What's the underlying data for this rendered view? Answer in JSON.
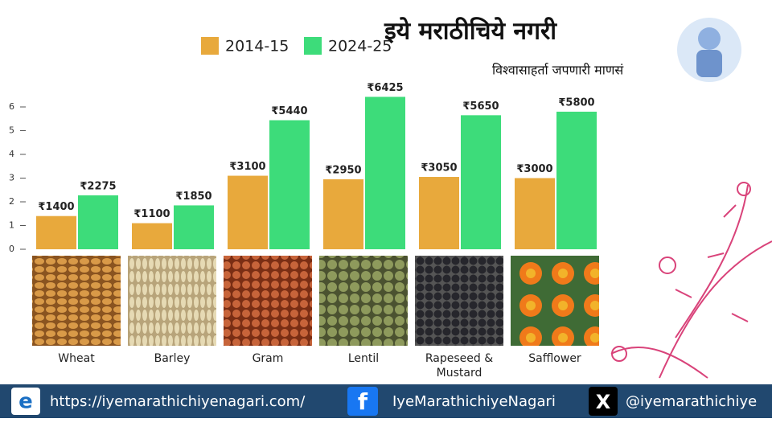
{
  "header": {
    "title": "इये मराठीचिये नगरी",
    "subtitle": "विश्वासाहर्ता जपणारी माणसं"
  },
  "chart_data": {
    "type": "bar",
    "categories": [
      "Wheat",
      "Barley",
      "Gram",
      "Lentil",
      "Rapeseed & Mustard",
      "Safflower"
    ],
    "series": [
      {
        "name": "2014-15",
        "color": "#e8a93c",
        "values": [
          1.4,
          1.1,
          3.1,
          2.95,
          3.05,
          3.0
        ],
        "value_labels": [
          "₹1400",
          "₹1100",
          "₹3100",
          "₹2950",
          "₹3050",
          "₹3000"
        ]
      },
      {
        "name": "2024-25",
        "color": "#3ddc7a",
        "values": [
          2.275,
          1.85,
          5.44,
          6.425,
          5.65,
          5.8
        ],
        "value_labels": [
          "₹2275",
          "₹1850",
          "₹5440",
          "₹6425",
          "₹5650",
          "₹5800"
        ]
      }
    ],
    "ylim": [
      0,
      7
    ],
    "yticks": [
      0,
      1,
      2,
      3,
      4,
      5,
      6
    ],
    "grid": false,
    "legend": "top"
  },
  "footer": {
    "website": "https://iyemarathichiyenagari.com/",
    "facebook": "IyeMarathichiyeNagari",
    "x_handle": "@iyemarathichiye"
  }
}
